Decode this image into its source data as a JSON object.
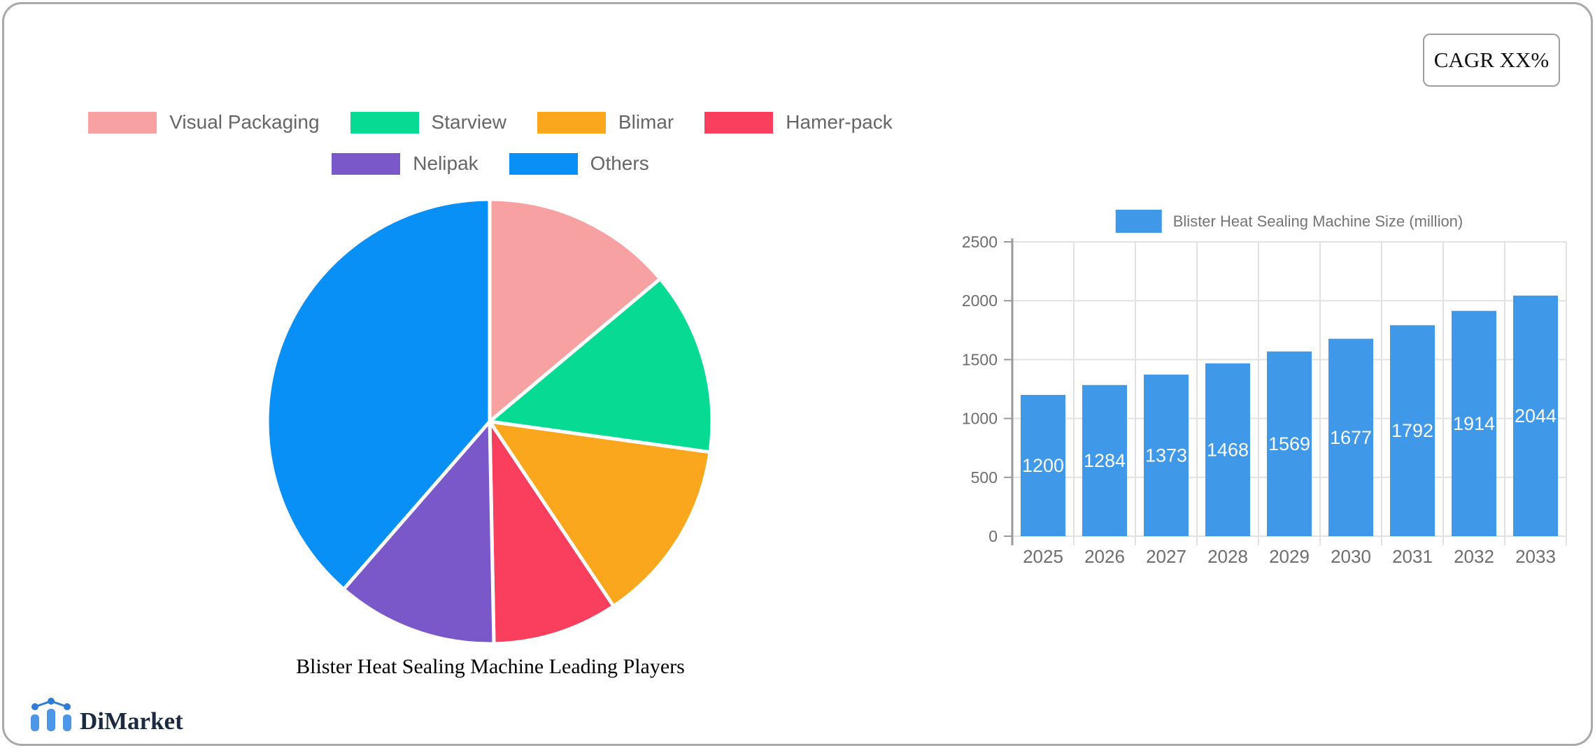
{
  "card": {
    "cagr_label": "CAGR XX%",
    "border_color": "#a9a9a9"
  },
  "brand": {
    "name": "DiMarket",
    "text_color": "#1b2a40",
    "icon": "mini-bar-line-chart-icon",
    "icon_bar_color": "#4d96e8",
    "icon_dot_color": "#2e7cd6"
  },
  "chart_data": [
    {
      "type": "pie",
      "title": "Blister Heat Sealing Machine Leading Players",
      "slices": [
        {
          "label": "Visual Packaging",
          "value_pct": 13.9,
          "color": "#f8a1a3"
        },
        {
          "label": "Starview",
          "value_pct": 13.3,
          "color": "#07da92"
        },
        {
          "label": "Blimar",
          "value_pct": 13.4,
          "color": "#fba71e"
        },
        {
          "label": "Hamer-pack",
          "value_pct": 9.1,
          "color": "#f93e5e"
        },
        {
          "label": "Nelipak",
          "value_pct": 11.7,
          "color": "#7b58c9"
        },
        {
          "label": "Others",
          "value_pct": 38.6,
          "color": "#0890f6"
        }
      ],
      "values_are_estimates_from_angles": true,
      "start_angle_deg": 0,
      "slice_gap_color": "#ffffff",
      "legend_rows": [
        [
          0,
          1,
          2,
          3
        ],
        [
          4,
          5
        ]
      ],
      "legend_text_color": "#666666",
      "legend_position": "top-centered"
    },
    {
      "type": "bar",
      "legend": "Blister Heat Sealing Machine Size (million)",
      "categories": [
        "2025",
        "2026",
        "2027",
        "2028",
        "2029",
        "2030",
        "2031",
        "2032",
        "2033"
      ],
      "values": [
        1200,
        1284,
        1373,
        1468,
        1569,
        1677,
        1792,
        1914,
        2044
      ],
      "bar_color": "#3f98e8",
      "value_label_color": "#ffffff",
      "ylim": [
        0,
        2500
      ],
      "yticks": [
        0,
        500,
        1000,
        1500,
        2000,
        2500
      ],
      "grid": true,
      "grid_color": "#e2e2e2",
      "axis_line_color": "#9a9a9a",
      "tick_label_color": "#6e6e6e",
      "legend_text_color": "#757575",
      "legend_position": "top-centered",
      "value_labels": "centered inside bars"
    }
  ]
}
